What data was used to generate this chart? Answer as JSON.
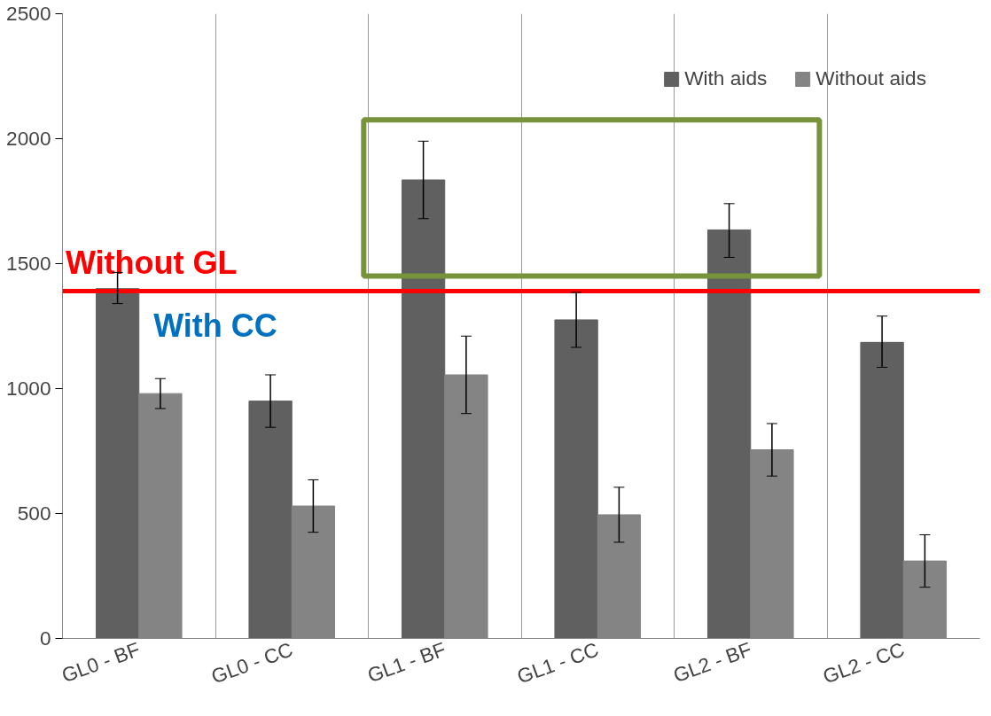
{
  "chart_data": {
    "type": "bar",
    "categories": [
      "GL0 - BF",
      "GL0 - CC",
      "GL1 - BF",
      "GL1 - CC",
      "GL2 - BF",
      "GL2 - CC"
    ],
    "series": [
      {
        "name": "With aids",
        "color": "#606060",
        "values": [
          1400,
          950,
          1835,
          1275,
          1635,
          1185
        ],
        "errors": [
          [
            1340,
            1465
          ],
          [
            845,
            1055
          ],
          [
            1680,
            1990
          ],
          [
            1165,
            1385
          ],
          [
            1525,
            1740
          ],
          [
            1085,
            1290
          ]
        ]
      },
      {
        "name": "Without aids",
        "color": "#848484",
        "values": [
          980,
          530,
          1055,
          495,
          755,
          310
        ],
        "errors": [
          [
            920,
            1040
          ],
          [
            425,
            635
          ],
          [
            900,
            1210
          ],
          [
            385,
            605
          ],
          [
            650,
            860
          ],
          [
            205,
            415
          ]
        ]
      }
    ],
    "ylim": [
      0,
      2500
    ],
    "yticks": [
      0,
      500,
      1000,
      1500,
      2000,
      2500
    ],
    "ref_lines": [
      {
        "axis": "y",
        "value": 1390,
        "label": "Without GL",
        "color": "#ff0000"
      }
    ],
    "annotations": [
      "With CC"
    ],
    "grid": "x",
    "legend": "top right"
  }
}
